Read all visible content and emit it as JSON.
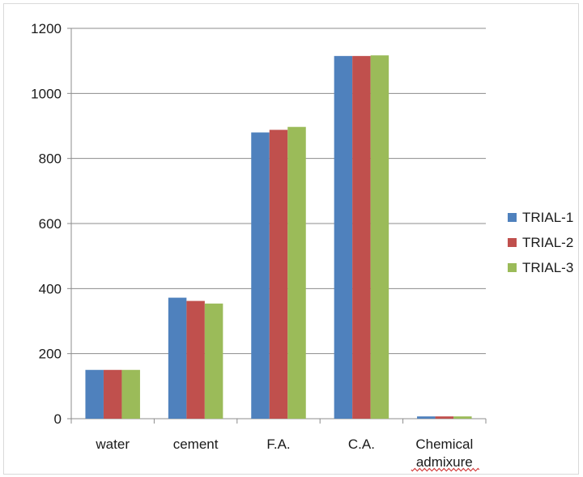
{
  "chart_data": {
    "type": "bar",
    "title": "",
    "xlabel": "",
    "ylabel": "",
    "categories": [
      "water",
      "cement",
      "F.A.",
      "C.A.",
      "Chemical admixure"
    ],
    "category_lines": [
      [
        "water"
      ],
      [
        "cement"
      ],
      [
        "F.A."
      ],
      [
        "C.A."
      ],
      [
        "Chemical",
        "admixure"
      ]
    ],
    "series": [
      {
        "name": "TRIAL-1",
        "color": "#4f81bd",
        "values": [
          150,
          372,
          880,
          1115,
          7
        ]
      },
      {
        "name": "TRIAL-2",
        "color": "#c0504d",
        "values": [
          150,
          362,
          888,
          1115,
          7
        ]
      },
      {
        "name": "TRIAL-3",
        "color": "#9bbb59",
        "values": [
          150,
          354,
          897,
          1117,
          7
        ]
      }
    ],
    "ylim": [
      0,
      1200
    ],
    "yticks": [
      0,
      200,
      400,
      600,
      800,
      1000,
      1200
    ],
    "grid": true,
    "legend": "right"
  }
}
